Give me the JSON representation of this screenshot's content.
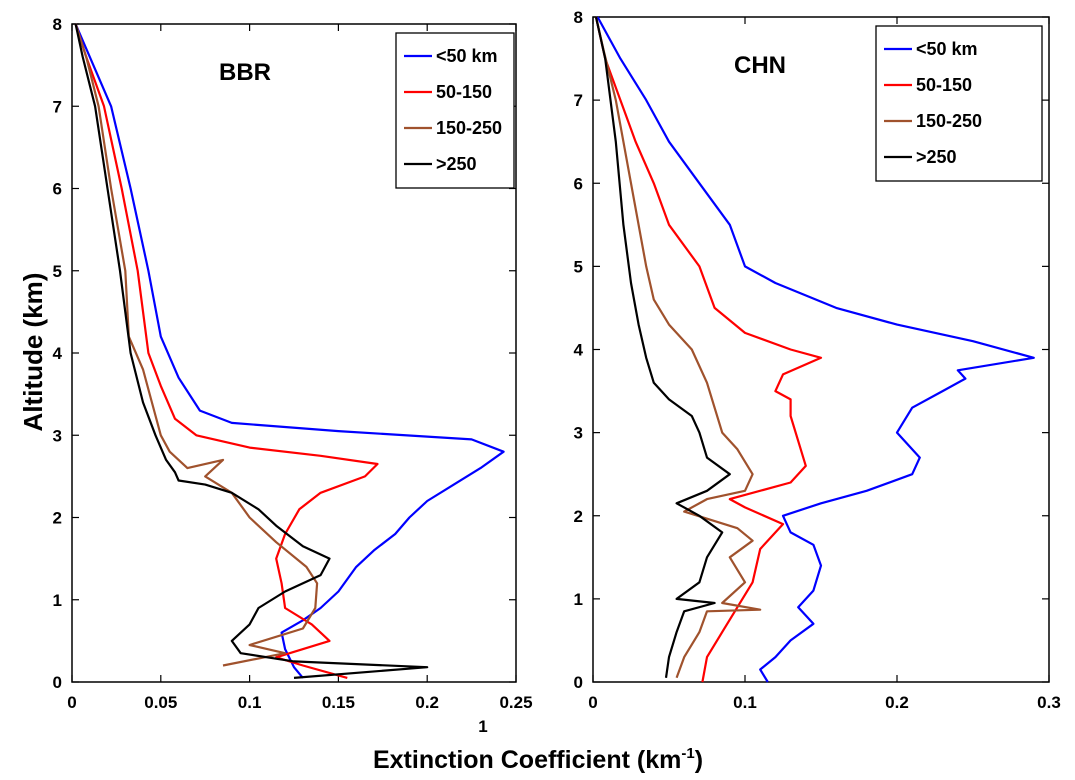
{
  "figure": {
    "xlabel_main": "Extinction Coefficient (km",
    "xlabel_sup": "-1",
    "xlabel_end": ")",
    "stray_mark": "1"
  },
  "chart_data": [
    {
      "type": "line",
      "title": "BBR",
      "xlabel": "Extinction Coefficient (km-1)",
      "ylabel": "Altitude (km)",
      "xlim": [
        0,
        0.25
      ],
      "ylim": [
        0,
        8
      ],
      "xticks": [
        "0",
        "0.05",
        "0.1",
        "0.15",
        "0.2",
        "0.25"
      ],
      "yticks": [
        "0",
        "1",
        "2",
        "3",
        "4",
        "5",
        "6",
        "7",
        "8"
      ],
      "legend_position": "top-right",
      "series": [
        {
          "name": "<50 km",
          "color": "#0000ff",
          "points": [
            [
              0.13,
              0.05
            ],
            [
              0.125,
              0.18
            ],
            [
              0.12,
              0.4
            ],
            [
              0.118,
              0.6
            ],
            [
              0.13,
              0.75
            ],
            [
              0.14,
              0.9
            ],
            [
              0.15,
              1.1
            ],
            [
              0.16,
              1.4
            ],
            [
              0.17,
              1.6
            ],
            [
              0.182,
              1.8
            ],
            [
              0.19,
              2.0
            ],
            [
              0.2,
              2.2
            ],
            [
              0.215,
              2.4
            ],
            [
              0.23,
              2.6
            ],
            [
              0.243,
              2.8
            ],
            [
              0.225,
              2.95
            ],
            [
              0.15,
              3.05
            ],
            [
              0.09,
              3.15
            ],
            [
              0.072,
              3.3
            ],
            [
              0.06,
              3.7
            ],
            [
              0.05,
              4.2
            ],
            [
              0.043,
              5.0
            ],
            [
              0.033,
              6.0
            ],
            [
              0.022,
              7.0
            ],
            [
              0.01,
              7.6
            ],
            [
              0.002,
              8.0
            ]
          ]
        },
        {
          "name": "50-150",
          "color": "#ff0000",
          "points": [
            [
              0.155,
              0.05
            ],
            [
              0.13,
              0.2
            ],
            [
              0.115,
              0.3
            ],
            [
              0.145,
              0.5
            ],
            [
              0.135,
              0.7
            ],
            [
              0.12,
              0.9
            ],
            [
              0.118,
              1.2
            ],
            [
              0.115,
              1.5
            ],
            [
              0.12,
              1.8
            ],
            [
              0.128,
              2.1
            ],
            [
              0.14,
              2.3
            ],
            [
              0.165,
              2.5
            ],
            [
              0.172,
              2.65
            ],
            [
              0.14,
              2.75
            ],
            [
              0.1,
              2.85
            ],
            [
              0.07,
              3.0
            ],
            [
              0.058,
              3.2
            ],
            [
              0.05,
              3.6
            ],
            [
              0.043,
              4.0
            ],
            [
              0.037,
              5.0
            ],
            [
              0.028,
              6.0
            ],
            [
              0.018,
              7.0
            ],
            [
              0.008,
              7.6
            ],
            [
              0.002,
              8.0
            ]
          ]
        },
        {
          "name": "150-250",
          "color": "#a0522d",
          "points": [
            [
              0.085,
              0.2
            ],
            [
              0.12,
              0.35
            ],
            [
              0.1,
              0.45
            ],
            [
              0.13,
              0.65
            ],
            [
              0.137,
              0.9
            ],
            [
              0.138,
              1.2
            ],
            [
              0.132,
              1.4
            ],
            [
              0.115,
              1.7
            ],
            [
              0.1,
              2.0
            ],
            [
              0.09,
              2.3
            ],
            [
              0.075,
              2.5
            ],
            [
              0.085,
              2.7
            ],
            [
              0.065,
              2.6
            ],
            [
              0.055,
              2.8
            ],
            [
              0.05,
              3.0
            ],
            [
              0.045,
              3.4
            ],
            [
              0.04,
              3.8
            ],
            [
              0.032,
              4.2
            ],
            [
              0.03,
              5.0
            ],
            [
              0.022,
              6.0
            ],
            [
              0.015,
              7.0
            ],
            [
              0.008,
              7.6
            ],
            [
              0.002,
              8.0
            ]
          ]
        },
        {
          "name": ">250",
          "color": "#000000",
          "points": [
            [
              0.125,
              0.05
            ],
            [
              0.2,
              0.18
            ],
            [
              0.125,
              0.25
            ],
            [
              0.095,
              0.35
            ],
            [
              0.09,
              0.5
            ],
            [
              0.1,
              0.7
            ],
            [
              0.105,
              0.9
            ],
            [
              0.12,
              1.1
            ],
            [
              0.14,
              1.3
            ],
            [
              0.145,
              1.5
            ],
            [
              0.13,
              1.65
            ],
            [
              0.115,
              1.9
            ],
            [
              0.105,
              2.1
            ],
            [
              0.09,
              2.3
            ],
            [
              0.075,
              2.4
            ],
            [
              0.06,
              2.45
            ],
            [
              0.058,
              2.55
            ],
            [
              0.053,
              2.7
            ],
            [
              0.047,
              3.0
            ],
            [
              0.04,
              3.4
            ],
            [
              0.033,
              4.0
            ],
            [
              0.027,
              5.0
            ],
            [
              0.02,
              6.0
            ],
            [
              0.013,
              7.0
            ],
            [
              0.006,
              7.6
            ],
            [
              0.002,
              8.0
            ]
          ]
        }
      ]
    },
    {
      "type": "line",
      "title": "CHN",
      "xlabel": "Extinction Coefficient (km-1)",
      "ylabel": "",
      "xlim": [
        0,
        0.3
      ],
      "ylim": [
        0,
        8
      ],
      "xticks": [
        "0",
        "0.1",
        "0.2",
        "0.3"
      ],
      "yticks": [
        "0",
        "1",
        "2",
        "3",
        "4",
        "5",
        "6",
        "7",
        "8"
      ],
      "legend_position": "top-right",
      "series": [
        {
          "name": "<50 km",
          "color": "#0000ff",
          "points": [
            [
              0.115,
              0.0
            ],
            [
              0.11,
              0.15
            ],
            [
              0.12,
              0.3
            ],
            [
              0.13,
              0.5
            ],
            [
              0.145,
              0.7
            ],
            [
              0.135,
              0.9
            ],
            [
              0.145,
              1.1
            ],
            [
              0.15,
              1.4
            ],
            [
              0.145,
              1.65
            ],
            [
              0.13,
              1.8
            ],
            [
              0.125,
              2.0
            ],
            [
              0.15,
              2.15
            ],
            [
              0.18,
              2.3
            ],
            [
              0.21,
              2.5
            ],
            [
              0.215,
              2.7
            ],
            [
              0.2,
              3.0
            ],
            [
              0.21,
              3.3
            ],
            [
              0.23,
              3.5
            ],
            [
              0.245,
              3.65
            ],
            [
              0.24,
              3.75
            ],
            [
              0.29,
              3.9
            ],
            [
              0.25,
              4.1
            ],
            [
              0.2,
              4.3
            ],
            [
              0.16,
              4.5
            ],
            [
              0.12,
              4.8
            ],
            [
              0.1,
              5.0
            ],
            [
              0.09,
              5.5
            ],
            [
              0.07,
              6.0
            ],
            [
              0.05,
              6.5
            ],
            [
              0.035,
              7.0
            ],
            [
              0.018,
              7.5
            ],
            [
              0.003,
              8.0
            ]
          ]
        },
        {
          "name": "50-150",
          "color": "#ff0000",
          "points": [
            [
              0.072,
              0.0
            ],
            [
              0.075,
              0.3
            ],
            [
              0.085,
              0.6
            ],
            [
              0.095,
              0.9
            ],
            [
              0.105,
              1.2
            ],
            [
              0.11,
              1.6
            ],
            [
              0.125,
              1.9
            ],
            [
              0.1,
              2.1
            ],
            [
              0.09,
              2.2
            ],
            [
              0.13,
              2.4
            ],
            [
              0.14,
              2.6
            ],
            [
              0.135,
              2.9
            ],
            [
              0.13,
              3.2
            ],
            [
              0.13,
              3.4
            ],
            [
              0.12,
              3.5
            ],
            [
              0.125,
              3.7
            ],
            [
              0.15,
              3.9
            ],
            [
              0.13,
              4.0
            ],
            [
              0.1,
              4.2
            ],
            [
              0.08,
              4.5
            ],
            [
              0.07,
              5.0
            ],
            [
              0.05,
              5.5
            ],
            [
              0.04,
              6.0
            ],
            [
              0.028,
              6.5
            ],
            [
              0.018,
              7.0
            ],
            [
              0.008,
              7.5
            ],
            [
              0.002,
              8.0
            ]
          ]
        },
        {
          "name": "150-250",
          "color": "#a0522d",
          "points": [
            [
              0.055,
              0.05
            ],
            [
              0.06,
              0.3
            ],
            [
              0.07,
              0.6
            ],
            [
              0.075,
              0.85
            ],
            [
              0.11,
              0.87
            ],
            [
              0.085,
              0.95
            ],
            [
              0.1,
              1.2
            ],
            [
              0.09,
              1.5
            ],
            [
              0.105,
              1.7
            ],
            [
              0.095,
              1.85
            ],
            [
              0.06,
              2.05
            ],
            [
              0.075,
              2.2
            ],
            [
              0.1,
              2.3
            ],
            [
              0.105,
              2.5
            ],
            [
              0.095,
              2.8
            ],
            [
              0.085,
              3.0
            ],
            [
              0.08,
              3.3
            ],
            [
              0.075,
              3.6
            ],
            [
              0.065,
              4.0
            ],
            [
              0.05,
              4.3
            ],
            [
              0.04,
              4.6
            ],
            [
              0.035,
              5.0
            ],
            [
              0.025,
              6.0
            ],
            [
              0.015,
              7.0
            ],
            [
              0.007,
              7.6
            ],
            [
              0.002,
              8.0
            ]
          ]
        },
        {
          "name": ">250",
          "color": "#000000",
          "points": [
            [
              0.048,
              0.05
            ],
            [
              0.05,
              0.3
            ],
            [
              0.055,
              0.6
            ],
            [
              0.06,
              0.85
            ],
            [
              0.08,
              0.95
            ],
            [
              0.055,
              1.0
            ],
            [
              0.07,
              1.2
            ],
            [
              0.075,
              1.5
            ],
            [
              0.085,
              1.8
            ],
            [
              0.07,
              2.0
            ],
            [
              0.055,
              2.15
            ],
            [
              0.075,
              2.3
            ],
            [
              0.09,
              2.5
            ],
            [
              0.075,
              2.7
            ],
            [
              0.07,
              3.0
            ],
            [
              0.065,
              3.2
            ],
            [
              0.05,
              3.4
            ],
            [
              0.04,
              3.6
            ],
            [
              0.035,
              3.9
            ],
            [
              0.03,
              4.3
            ],
            [
              0.025,
              4.8
            ],
            [
              0.02,
              5.5
            ],
            [
              0.015,
              6.5
            ],
            [
              0.008,
              7.5
            ],
            [
              0.002,
              8.0
            ]
          ]
        }
      ]
    }
  ]
}
